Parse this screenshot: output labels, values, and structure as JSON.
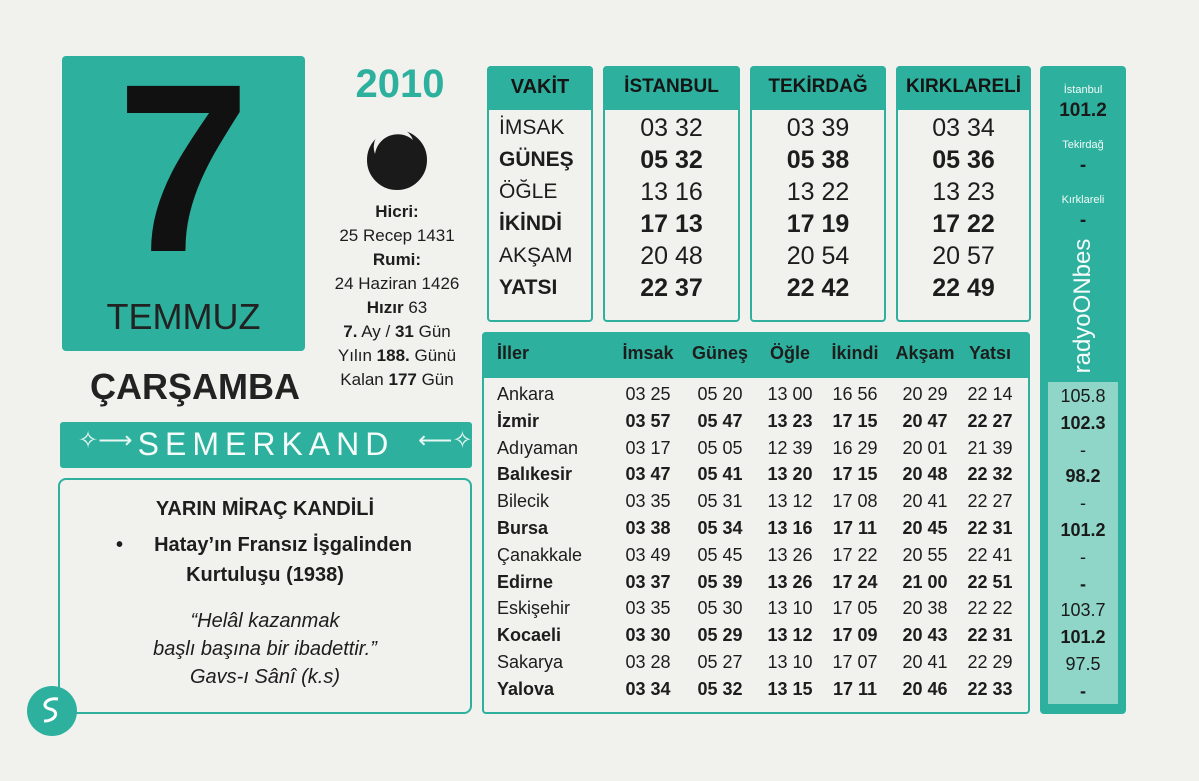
{
  "date": {
    "day": "7",
    "month": "TEMMUZ",
    "year": "2010",
    "weekday": "ÇARŞAMBA"
  },
  "info": {
    "lines": [
      [
        {
          "text": "Hicri:",
          "bold": true
        }
      ],
      [
        {
          "text": "25 Recep 1431"
        }
      ],
      [
        {
          "text": "Rumi:",
          "bold": true
        }
      ],
      [
        {
          "text": "24 Haziran 1426"
        }
      ],
      [
        {
          "text": "Hızır",
          "bold": true
        },
        {
          "text": " 63"
        }
      ],
      [
        {
          "text": "7.",
          "bold": true
        },
        {
          "text": " Ay / "
        },
        {
          "text": "31",
          "bold": true
        },
        {
          "text": " Gün"
        }
      ],
      [
        {
          "text": "Yılın "
        },
        {
          "text": "188.",
          "bold": true
        },
        {
          "text": " Günü"
        }
      ],
      [
        {
          "text": "Kalan "
        },
        {
          "text": "177",
          "bold": true
        },
        {
          "text": " Gün"
        }
      ]
    ]
  },
  "brand": "SEMERKAND",
  "note": {
    "title": "YARIN MİRAÇ KANDİLİ",
    "bullet": [
      "Hatay’ın Fransız İşgalinden",
      "Kurtuluşu (1938)"
    ],
    "quote": [
      "“Helâl kazanmak",
      "başlı başına bir ibadettir.”",
      "Gavs-ı Sânî (k.s)"
    ]
  },
  "prayer_table": {
    "header": [
      "VAKİT",
      "İSTANBUL",
      "TEKİRDAĞ",
      "KIRKLARELİ"
    ],
    "rows": [
      [
        "İMSAK",
        "03 32",
        "03 39",
        "03 34"
      ],
      [
        "GÜNEŞ",
        "05 32",
        "05 38",
        "05 36"
      ],
      [
        "ÖĞLE",
        "13 16",
        "13 22",
        "13 23"
      ],
      [
        "İKİNDİ",
        "17 13",
        "17 19",
        "17 22"
      ],
      [
        "AKŞAM",
        "20 48",
        "20 54",
        "20 57"
      ],
      [
        "YATSI",
        "22 37",
        "22 42",
        "22 49"
      ]
    ]
  },
  "cities_table": {
    "header": [
      "İller",
      "İmsak",
      "Güneş",
      "Öğle",
      "İkindi",
      "Akşam",
      "Yatsı"
    ],
    "rows": [
      [
        "Ankara",
        "03 25",
        "05 20",
        "13 00",
        "16 56",
        "20 29",
        "22 14"
      ],
      [
        "İzmir",
        "03 57",
        "05 47",
        "13 23",
        "17 15",
        "20 47",
        "22 27"
      ],
      [
        "Adıyaman",
        "03 17",
        "05 05",
        "12 39",
        "16 29",
        "20 01",
        "21 39"
      ],
      [
        "Balıkesir",
        "03 47",
        "05 41",
        "13 20",
        "17 15",
        "20 48",
        "22 32"
      ],
      [
        "Bilecik",
        "03 35",
        "05 31",
        "13 12",
        "17 08",
        "20 41",
        "22 27"
      ],
      [
        "Bursa",
        "03 38",
        "05 34",
        "13 16",
        "17 11",
        "20 45",
        "22 31"
      ],
      [
        "Çanakkale",
        "03 49",
        "05 45",
        "13 26",
        "17 22",
        "20 55",
        "22 41"
      ],
      [
        "Edirne",
        "03 37",
        "05 39",
        "13 26",
        "17 24",
        "21 00",
        "22 51"
      ],
      [
        "Eskişehir",
        "03 35",
        "05 30",
        "13 10",
        "17 05",
        "20 38",
        "22 22"
      ],
      [
        "Kocaeli",
        "03 30",
        "05 29",
        "13 12",
        "17 09",
        "20 43",
        "22 31"
      ],
      [
        "Sakarya",
        "03 28",
        "05 27",
        "13 10",
        "17 07",
        "20 41",
        "22 29"
      ],
      [
        "Yalova",
        "03 34",
        "05 32",
        "13 15",
        "17 11",
        "20 46",
        "22 33"
      ]
    ]
  },
  "radio": {
    "top": [
      {
        "city": "İstanbul",
        "freq": "101.2"
      },
      {
        "city": "Tekirdağ",
        "freq": "-"
      },
      {
        "city": "Kırklareli",
        "freq": "-"
      }
    ],
    "logo": "radyoONbes",
    "freqs": [
      "105.8",
      "102.3",
      "-",
      "98.2",
      "-",
      "101.2",
      "-",
      "-",
      "103.7",
      "101.2",
      "97.5",
      "-"
    ]
  }
}
